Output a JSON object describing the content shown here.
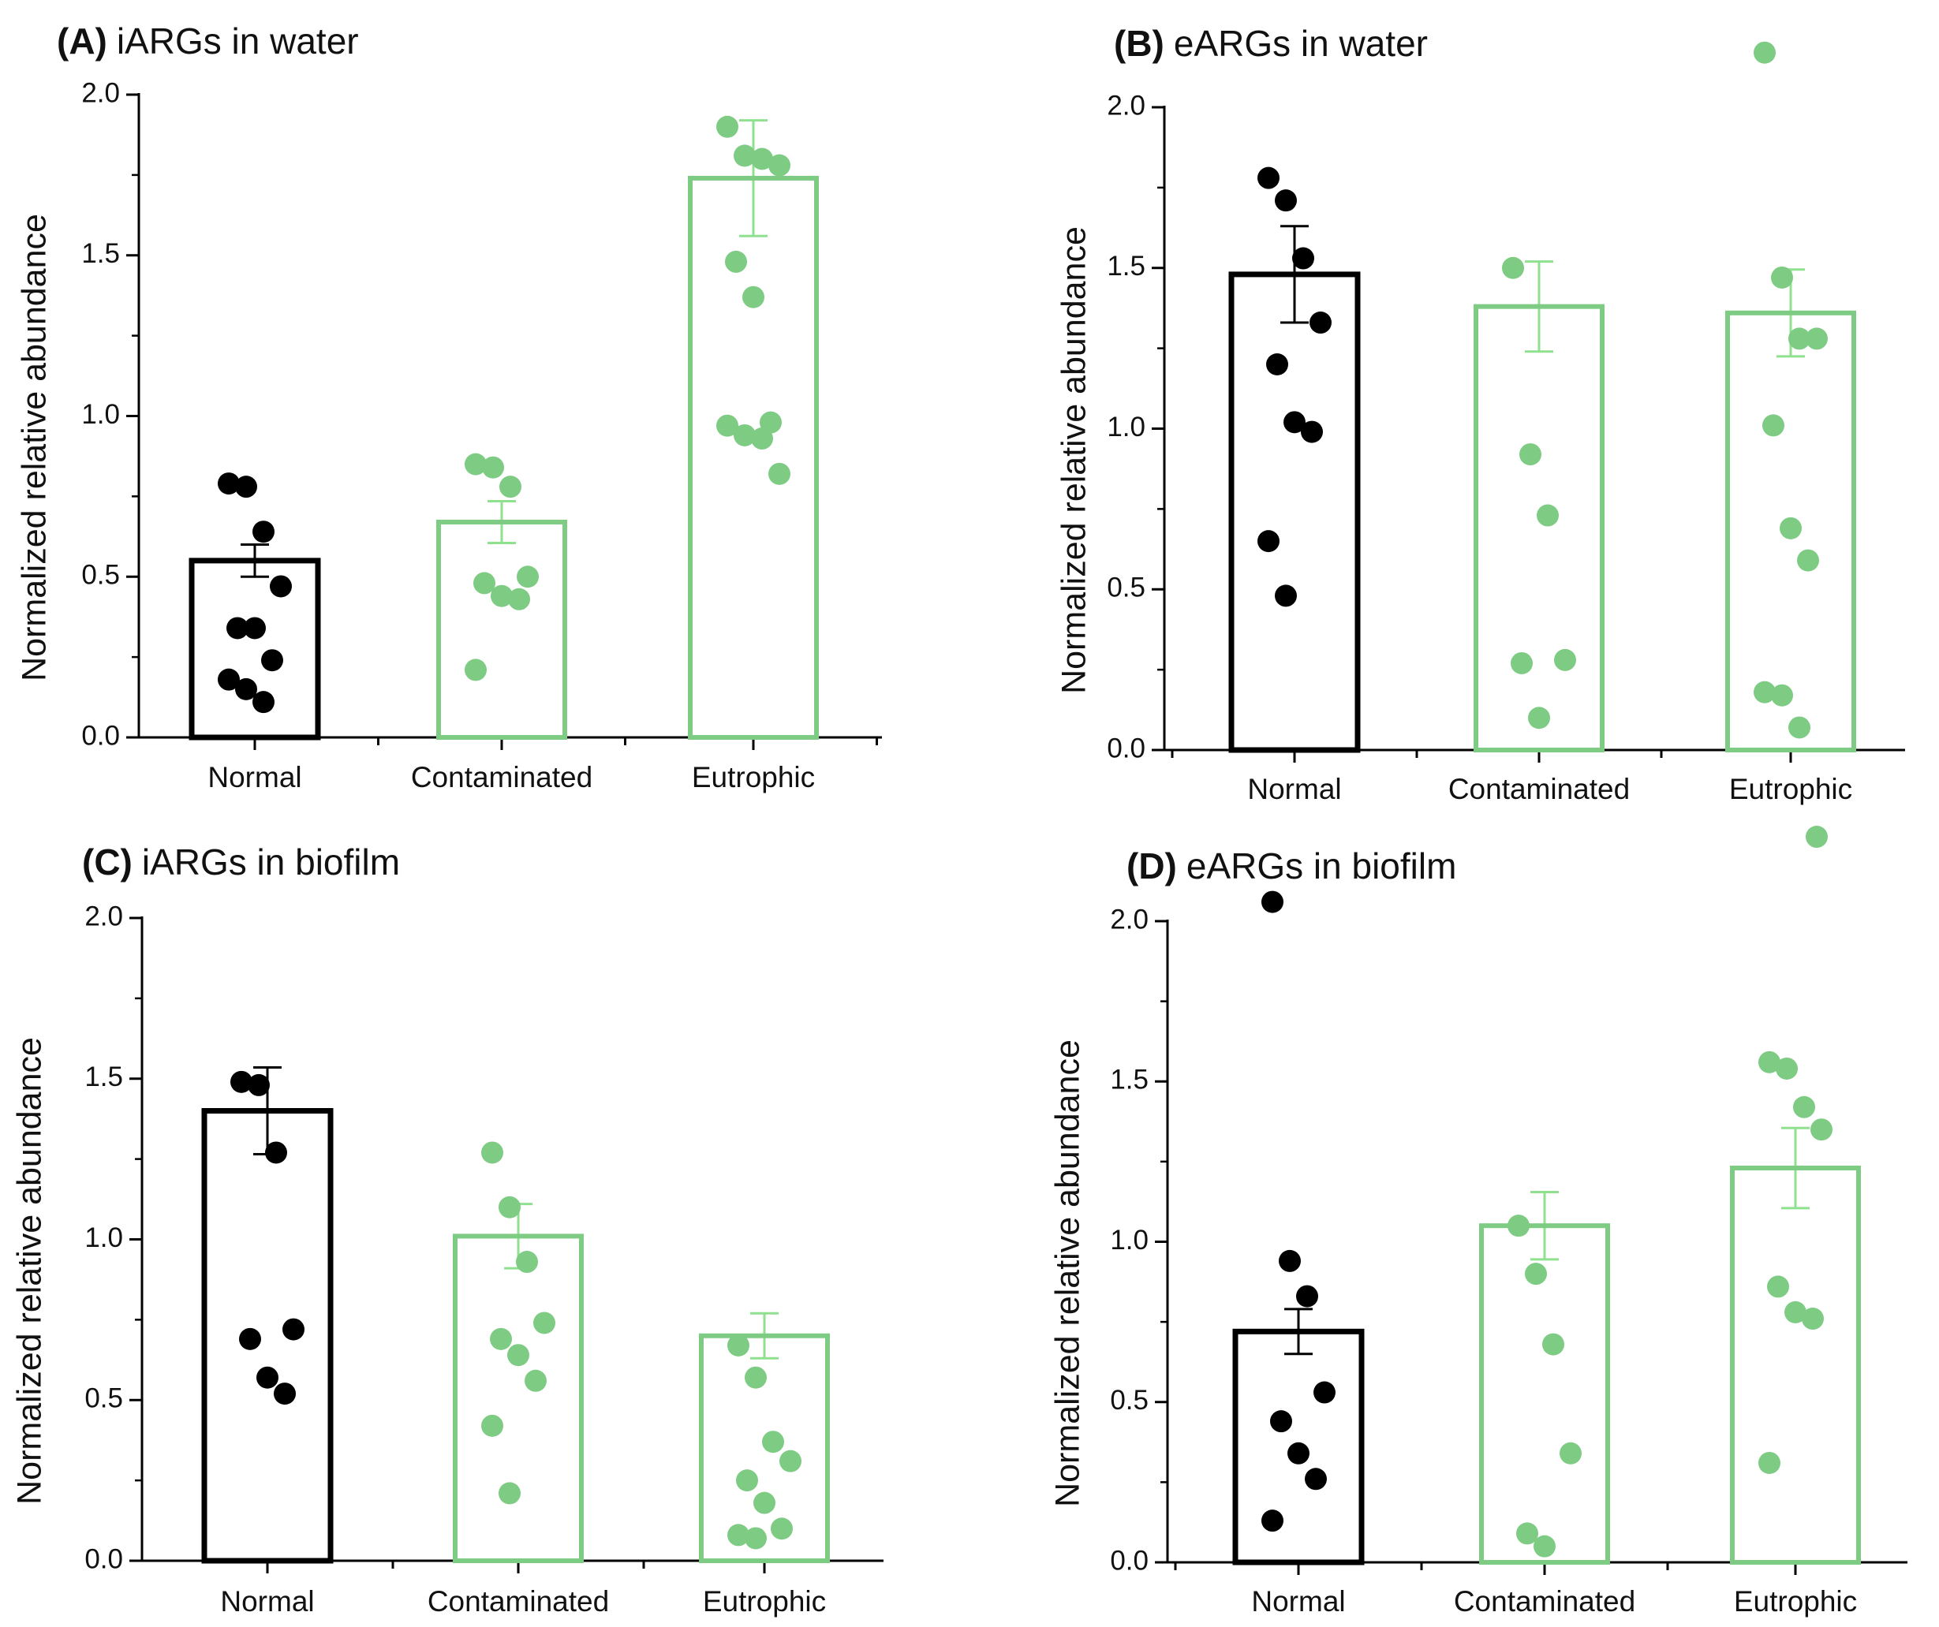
{
  "colors": {
    "normal": "#000000",
    "contaminated": "#7ecb83",
    "eutrophic": "#7ecb83",
    "errorbar_green": "#8fe08f"
  },
  "chart_data": [
    {
      "type": "bar",
      "panel": "(A)",
      "title": "iARGs in water",
      "ylabel": "Normalized relative abundance",
      "xlabel": "",
      "ylim": [
        0,
        2.0
      ],
      "yticks": [
        "0.0",
        "0.5",
        "1.0",
        "1.5",
        "2.0"
      ],
      "categories": [
        "Normal",
        "Contaminated",
        "Eutrophic"
      ],
      "values": [
        0.55,
        0.67,
        1.74
      ],
      "sem": [
        0.05,
        0.065,
        0.18
      ],
      "points": [
        [
          0.79,
          0.78,
          0.64,
          0.47,
          0.34,
          0.34,
          0.24,
          0.18,
          0.15,
          0.11
        ],
        [
          0.85,
          0.84,
          0.78,
          0.5,
          0.48,
          0.44,
          0.43,
          0.21
        ],
        [
          1.9,
          1.81,
          1.8,
          1.78,
          1.48,
          1.37,
          0.98,
          0.97,
          0.94,
          0.93,
          0.82
        ]
      ]
    },
    {
      "type": "bar",
      "panel": "(B)",
      "title": "eARGs in water",
      "ylabel": "Normalized relative abundance",
      "xlabel": "",
      "ylim": [
        0,
        2.0
      ],
      "yticks": [
        "0.0",
        "0.5",
        "1.0",
        "1.5",
        "2.0"
      ],
      "categories": [
        "Normal",
        "Contaminated",
        "Eutrophic"
      ],
      "values": [
        1.48,
        1.38,
        1.36
      ],
      "sem": [
        0.15,
        0.14,
        0.135
      ],
      "points": [
        [
          1.78,
          1.71,
          1.53,
          1.33,
          1.2,
          1.02,
          0.99,
          0.65,
          0.48
        ],
        [
          1.5,
          0.92,
          0.73,
          0.28,
          0.27,
          0.1
        ],
        [
          2.17,
          1.47,
          1.28,
          1.28,
          1.01,
          0.69,
          0.59,
          0.18,
          0.17,
          0.07,
          -0.27
        ]
      ]
    },
    {
      "type": "bar",
      "panel": "(C)",
      "title": "iARGs in biofilm",
      "ylabel": "Normalized relative abundance",
      "xlabel": "",
      "ylim": [
        0,
        2.0
      ],
      "yticks": [
        "0.0",
        "0.5",
        "1.0",
        "1.5",
        "2.0"
      ],
      "categories": [
        "Normal",
        "Contaminated",
        "Eutrophic"
      ],
      "values": [
        1.4,
        1.01,
        0.7
      ],
      "sem": [
        0.135,
        0.1,
        0.07
      ],
      "points": [
        [
          1.49,
          1.48,
          1.27,
          0.72,
          0.69,
          0.57,
          0.52
        ],
        [
          1.27,
          1.1,
          0.93,
          0.74,
          0.69,
          0.64,
          0.56,
          0.42,
          0.21
        ],
        [
          0.67,
          0.57,
          0.37,
          0.31,
          0.25,
          0.18,
          0.1,
          0.08,
          0.07
        ]
      ]
    },
    {
      "type": "bar",
      "panel": "(D)",
      "title": "eARGs in biofilm",
      "ylabel": "Normalized relative abundance",
      "xlabel": "",
      "ylim": [
        0,
        2.0
      ],
      "yticks": [
        "0.0",
        "0.5",
        "1.0",
        "1.5",
        "2.0"
      ],
      "categories": [
        "Normal",
        "Contaminated",
        "Eutrophic"
      ],
      "values": [
        0.72,
        1.05,
        1.23
      ],
      "sem": [
        0.07,
        0.105,
        0.125
      ],
      "points": [
        [
          2.06,
          0.94,
          0.83,
          0.53,
          0.44,
          0.34,
          0.26,
          0.13
        ],
        [
          1.05,
          0.9,
          0.68,
          0.34,
          0.09,
          0.05
        ],
        [
          1.56,
          1.54,
          1.42,
          1.35,
          0.86,
          0.78,
          0.76,
          0.31
        ]
      ]
    }
  ]
}
